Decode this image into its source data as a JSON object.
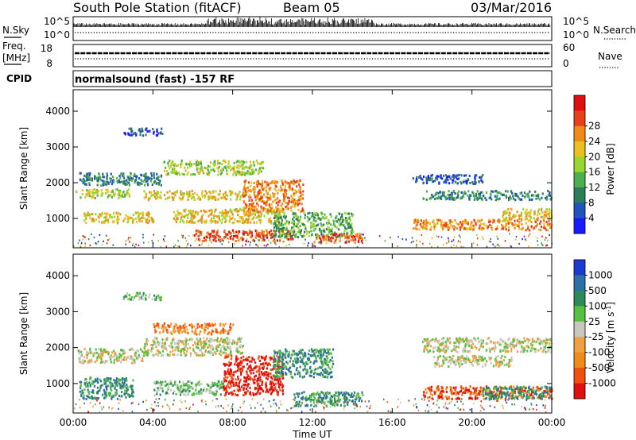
{
  "header": {
    "station": "South Pole Station (fitACF)",
    "beam": "Beam 05",
    "date": "03/Mar/2016"
  },
  "noise_panel": {
    "left_label": "N.Sky",
    "right_label": "N.Search",
    "left_ticks": [
      "10^5",
      "10^0"
    ],
    "right_ticks": [
      "10^5",
      "10^0"
    ]
  },
  "freq_panel": {
    "left_label_1": "Freq.",
    "left_label_2": "[MHz]",
    "right_label": "Nave",
    "left_ticks": [
      "18",
      "8"
    ],
    "right_ticks": [
      "60",
      "0"
    ]
  },
  "cpid_panel": {
    "label": "CPID",
    "text": "normalsound (fast) -157 RF"
  },
  "chart_data": [
    {
      "type": "heatmap",
      "name": "power",
      "ylabel": "Slant Range [km]",
      "xlabel": "Time UT",
      "x_ticks": [
        "00:00",
        "04:00",
        "08:00",
        "12:00",
        "16:00",
        "20:00",
        "00:00"
      ],
      "xlim_hours": [
        0,
        24
      ],
      "y_ticks": [
        1000,
        2000,
        3000,
        4000
      ],
      "ylim": [
        180,
        4600
      ],
      "colorbar": {
        "label": "Power [dB]",
        "ticks": [
          "4",
          "8",
          "12",
          "16",
          "20",
          "24",
          "28"
        ],
        "colors": [
          "#1a1aff",
          "#2255bb",
          "#2e7d5a",
          "#4caf50",
          "#9ad630",
          "#e8c020",
          "#f08a1a",
          "#e8401a",
          "#e01010"
        ]
      },
      "bands": [
        {
          "t0": 0.1,
          "t1": 2.8,
          "r0": 1600,
          "r1": 1850,
          "level": 4
        },
        {
          "t0": 0.5,
          "t1": 4.0,
          "r0": 900,
          "r1": 1200,
          "level": 5
        },
        {
          "t0": 0.3,
          "t1": 4.5,
          "r0": 1950,
          "r1": 2300,
          "level": 2
        },
        {
          "t0": 2.5,
          "t1": 4.5,
          "r0": 3350,
          "r1": 3550,
          "level": 1
        },
        {
          "t0": 3.5,
          "t1": 8.5,
          "r0": 1550,
          "r1": 1800,
          "level": 5
        },
        {
          "t0": 4.5,
          "t1": 9.5,
          "r0": 2250,
          "r1": 2650,
          "level": 4
        },
        {
          "t0": 5.0,
          "t1": 10.5,
          "r0": 900,
          "r1": 1300,
          "level": 5
        },
        {
          "t0": 6.0,
          "t1": 11.0,
          "r0": 400,
          "r1": 700,
          "level": 7
        },
        {
          "t0": 8.5,
          "t1": 11.5,
          "r0": 1200,
          "r1": 2100,
          "level": 6
        },
        {
          "t0": 10.0,
          "t1": 14.0,
          "r0": 500,
          "r1": 1200,
          "level": 3
        },
        {
          "t0": 12.0,
          "t1": 14.5,
          "r0": 350,
          "r1": 600,
          "level": 7
        },
        {
          "t0": 17.0,
          "t1": 24.0,
          "r0": 700,
          "r1": 1000,
          "level": 6
        },
        {
          "t0": 17.5,
          "t1": 24.0,
          "r0": 1550,
          "r1": 1800,
          "level": 2
        },
        {
          "t0": 17.0,
          "t1": 20.5,
          "r0": 2000,
          "r1": 2250,
          "level": 1
        },
        {
          "t0": 21.5,
          "t1": 24.0,
          "r0": 1000,
          "r1": 1300,
          "level": 5
        }
      ]
    },
    {
      "type": "heatmap",
      "name": "velocity",
      "ylabel": "Slant Range [km]",
      "xlabel": "Time UT",
      "x_ticks": [
        "00:00",
        "04:00",
        "08:00",
        "12:00",
        "16:00",
        "20:00",
        "00:00"
      ],
      "xlim_hours": [
        0,
        24
      ],
      "y_ticks": [
        1000,
        2000,
        3000,
        4000
      ],
      "ylim": [
        180,
        4600
      ],
      "colorbar": {
        "label": "Velocity [m s^-1]",
        "ticks": [
          "1000",
          "500",
          "100",
          "25",
          "-25",
          "-100",
          "-500",
          "-1000"
        ],
        "colors": [
          "#1a3ad0",
          "#2f6fa8",
          "#2e8a5a",
          "#58c040",
          "#c8c8c0",
          "#f0a040",
          "#f08a1a",
          "#ee5010",
          "#e01010"
        ]
      },
      "bands": [
        {
          "t0": 0.2,
          "t1": 3.5,
          "r0": 1600,
          "r1": 2000,
          "level": 4
        },
        {
          "t0": 0.3,
          "t1": 3.0,
          "r0": 600,
          "r1": 1200,
          "level": 2
        },
        {
          "t0": 2.5,
          "t1": 4.5,
          "r0": 3350,
          "r1": 3550,
          "level": 3
        },
        {
          "t0": 3.5,
          "t1": 8.5,
          "r0": 1800,
          "r1": 2300,
          "level": 4
        },
        {
          "t0": 4.0,
          "t1": 8.0,
          "r0": 2400,
          "r1": 2700,
          "level": 6
        },
        {
          "t0": 4.0,
          "t1": 7.5,
          "r0": 700,
          "r1": 1100,
          "level": 3
        },
        {
          "t0": 7.5,
          "t1": 10.5,
          "r0": 700,
          "r1": 1800,
          "level": 8
        },
        {
          "t0": 10.0,
          "t1": 13.0,
          "r0": 1200,
          "r1": 2000,
          "level": 2
        },
        {
          "t0": 11.0,
          "t1": 14.5,
          "r0": 400,
          "r1": 800,
          "level": 2
        },
        {
          "t0": 17.5,
          "t1": 24.0,
          "r0": 600,
          "r1": 950,
          "level": 7
        },
        {
          "t0": 20.5,
          "t1": 24.0,
          "r0": 600,
          "r1": 950,
          "level": 2
        },
        {
          "t0": 17.5,
          "t1": 24.0,
          "r0": 1900,
          "r1": 2300,
          "level": 4
        },
        {
          "t0": 18.0,
          "t1": 22.0,
          "r0": 1500,
          "r1": 1800,
          "level": 4
        }
      ]
    }
  ]
}
